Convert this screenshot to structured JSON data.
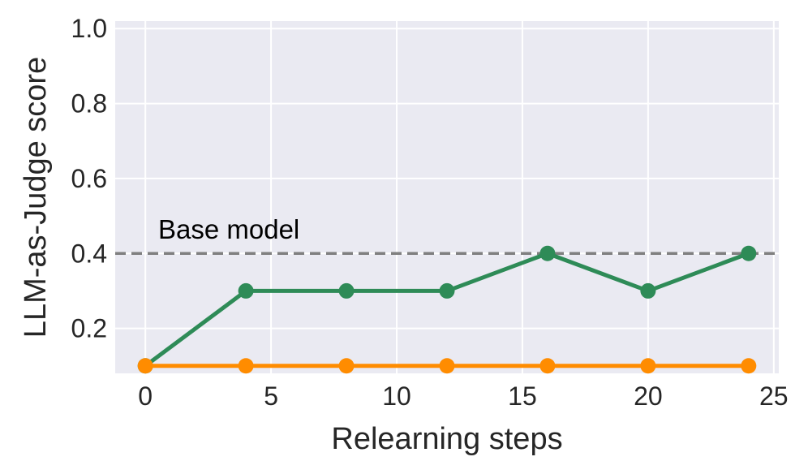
{
  "chart_data": {
    "type": "line",
    "title": "",
    "xlabel": "Relearning steps",
    "ylabel": "LLM-as-Judge score",
    "xlim": [
      -1.2,
      25.2
    ],
    "ylim": [
      0.08,
      1.02
    ],
    "xticks": [
      0,
      5,
      10,
      15,
      20,
      25
    ],
    "yticks": [
      0.2,
      0.4,
      0.6,
      0.8,
      1.0
    ],
    "xtick_labels": [
      "0",
      "5",
      "10",
      "15",
      "20",
      "25"
    ],
    "ytick_labels": [
      "0.2",
      "0.4",
      "0.6",
      "0.8",
      "1.0"
    ],
    "grid": true,
    "background": "#eaeaf2",
    "x": [
      0,
      4,
      8,
      12,
      16,
      20,
      24
    ],
    "series": [
      {
        "values": [
          0.1,
          0.3,
          0.3,
          0.3,
          0.4,
          0.3,
          0.4
        ],
        "color": "#2e8b57"
      },
      {
        "values": [
          0.1,
          0.1,
          0.1,
          0.1,
          0.1,
          0.1,
          0.1
        ],
        "color": "#ff8c00"
      }
    ],
    "reference_line": {
      "y": 0.4,
      "label": "Base model",
      "color": "#808080",
      "style": "dashed"
    }
  }
}
